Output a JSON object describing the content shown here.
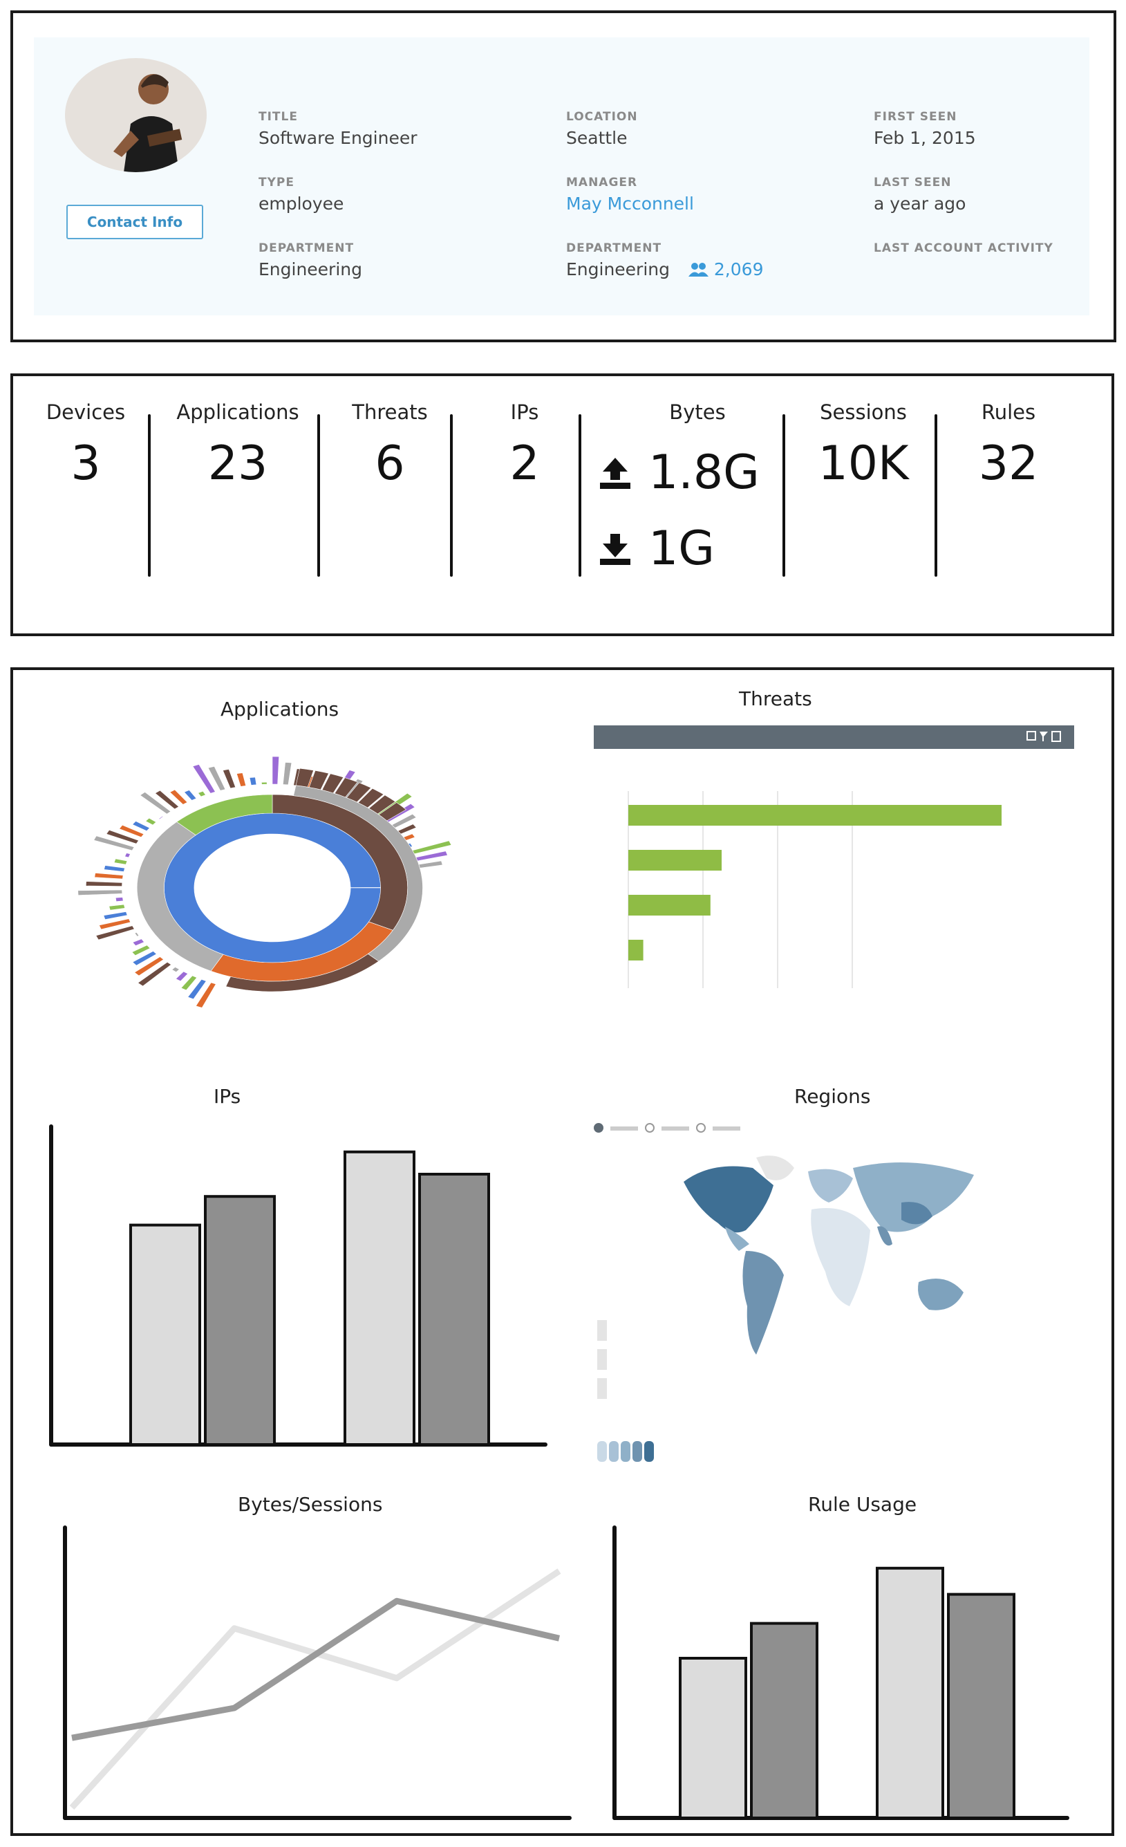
{
  "profile": {
    "contact_button": "Contact Info",
    "fields": {
      "title": {
        "label": "TITLE",
        "value": "Software Engineer"
      },
      "location": {
        "label": "LOCATION",
        "value": "Seattle"
      },
      "first_seen": {
        "label": "FIRST SEEN",
        "value": "Feb 1, 2015"
      },
      "type": {
        "label": "TYPE",
        "value": "employee"
      },
      "manager": {
        "label": "MANAGER",
        "value": "May Mcconnell"
      },
      "last_seen": {
        "label": "LAST SEEN",
        "value": "a year ago"
      },
      "department": {
        "label": "DEPARTMENT",
        "value": "Engineering"
      },
      "department2": {
        "label": "DEPARTMENT",
        "value": "Engineering",
        "count": "2,069"
      },
      "last_account_activity": {
        "label": "LAST ACCOUNT ACTIVITY"
      }
    }
  },
  "stats": {
    "devices": {
      "label": "Devices",
      "value": "3"
    },
    "applications": {
      "label": "Applications",
      "value": "23"
    },
    "threats": {
      "label": "Threats",
      "value": "6"
    },
    "ips": {
      "label": "IPs",
      "value": "2"
    },
    "bytes": {
      "label": "Bytes",
      "upload": "1.8G",
      "download": "1G"
    },
    "sessions": {
      "label": "Sessions",
      "value": "10K"
    },
    "rules": {
      "label": "Rules",
      "value": "32"
    }
  },
  "charts": {
    "applications_title": "Applications",
    "threats_title": "Threats",
    "ips_title": "IPs",
    "regions_title": "Regions",
    "bytes_sessions_title": "Bytes/Sessions",
    "rule_usage_title": "Rule Usage"
  },
  "colors": {
    "accent": "#3a9ad9",
    "threat_bar": "#8fbc45",
    "bar_light": "#dcdcdc",
    "bar_dark": "#8f8f8f",
    "map_dark": "#3e6f94",
    "map_light": "#c9d9e6"
  },
  "chart_data": [
    {
      "type": "bar",
      "title": "Threats",
      "orientation": "horizontal",
      "values": [
        1.0,
        0.25,
        0.22,
        0.04
      ]
    },
    {
      "type": "bar",
      "title": "IPs",
      "series": [
        {
          "values": [
            0.69,
            0.78
          ]
        },
        {
          "values": [
            0.92,
            0.85
          ]
        }
      ],
      "categories": [
        "",
        ""
      ]
    },
    {
      "type": "line",
      "title": "Bytes/Sessions",
      "x": [
        0,
        1,
        2,
        3
      ],
      "series": [
        {
          "color": "#e3e3e3",
          "values": [
            0.0,
            0.72,
            0.52,
            0.95
          ]
        },
        {
          "color": "#9a9a9a",
          "values": [
            0.28,
            0.4,
            0.83,
            0.68
          ]
        }
      ]
    },
    {
      "type": "bar",
      "title": "Rule Usage",
      "series": [
        {
          "values": [
            0.55,
            0.67
          ]
        },
        {
          "values": [
            0.86,
            0.77
          ]
        }
      ],
      "categories": [
        "",
        ""
      ]
    }
  ]
}
